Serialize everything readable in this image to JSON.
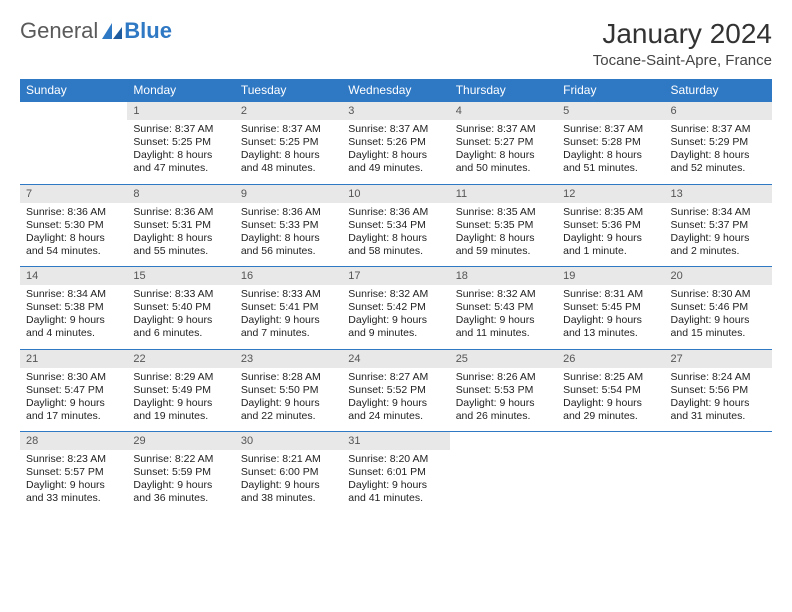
{
  "logo": {
    "word1": "General",
    "word2": "Blue"
  },
  "title": "January 2024",
  "location": "Tocane-Saint-Apre, France",
  "colors": {
    "header_bg": "#2f78c4",
    "header_text": "#ffffff",
    "daynum_bg": "#e8e8e8",
    "rule": "#2f78c4",
    "body_text": "#222222"
  },
  "day_names": [
    "Sunday",
    "Monday",
    "Tuesday",
    "Wednesday",
    "Thursday",
    "Friday",
    "Saturday"
  ],
  "weeks": [
    {
      "nums": [
        "",
        "1",
        "2",
        "3",
        "4",
        "5",
        "6"
      ],
      "cells": [
        null,
        {
          "sunrise": "Sunrise: 8:37 AM",
          "sunset": "Sunset: 5:25 PM",
          "daylight": "Daylight: 8 hours and 47 minutes."
        },
        {
          "sunrise": "Sunrise: 8:37 AM",
          "sunset": "Sunset: 5:25 PM",
          "daylight": "Daylight: 8 hours and 48 minutes."
        },
        {
          "sunrise": "Sunrise: 8:37 AM",
          "sunset": "Sunset: 5:26 PM",
          "daylight": "Daylight: 8 hours and 49 minutes."
        },
        {
          "sunrise": "Sunrise: 8:37 AM",
          "sunset": "Sunset: 5:27 PM",
          "daylight": "Daylight: 8 hours and 50 minutes."
        },
        {
          "sunrise": "Sunrise: 8:37 AM",
          "sunset": "Sunset: 5:28 PM",
          "daylight": "Daylight: 8 hours and 51 minutes."
        },
        {
          "sunrise": "Sunrise: 8:37 AM",
          "sunset": "Sunset: 5:29 PM",
          "daylight": "Daylight: 8 hours and 52 minutes."
        }
      ]
    },
    {
      "nums": [
        "7",
        "8",
        "9",
        "10",
        "11",
        "12",
        "13"
      ],
      "cells": [
        {
          "sunrise": "Sunrise: 8:36 AM",
          "sunset": "Sunset: 5:30 PM",
          "daylight": "Daylight: 8 hours and 54 minutes."
        },
        {
          "sunrise": "Sunrise: 8:36 AM",
          "sunset": "Sunset: 5:31 PM",
          "daylight": "Daylight: 8 hours and 55 minutes."
        },
        {
          "sunrise": "Sunrise: 8:36 AM",
          "sunset": "Sunset: 5:33 PM",
          "daylight": "Daylight: 8 hours and 56 minutes."
        },
        {
          "sunrise": "Sunrise: 8:36 AM",
          "sunset": "Sunset: 5:34 PM",
          "daylight": "Daylight: 8 hours and 58 minutes."
        },
        {
          "sunrise": "Sunrise: 8:35 AM",
          "sunset": "Sunset: 5:35 PM",
          "daylight": "Daylight: 8 hours and 59 minutes."
        },
        {
          "sunrise": "Sunrise: 8:35 AM",
          "sunset": "Sunset: 5:36 PM",
          "daylight": "Daylight: 9 hours and 1 minute."
        },
        {
          "sunrise": "Sunrise: 8:34 AM",
          "sunset": "Sunset: 5:37 PM",
          "daylight": "Daylight: 9 hours and 2 minutes."
        }
      ]
    },
    {
      "nums": [
        "14",
        "15",
        "16",
        "17",
        "18",
        "19",
        "20"
      ],
      "cells": [
        {
          "sunrise": "Sunrise: 8:34 AM",
          "sunset": "Sunset: 5:38 PM",
          "daylight": "Daylight: 9 hours and 4 minutes."
        },
        {
          "sunrise": "Sunrise: 8:33 AM",
          "sunset": "Sunset: 5:40 PM",
          "daylight": "Daylight: 9 hours and 6 minutes."
        },
        {
          "sunrise": "Sunrise: 8:33 AM",
          "sunset": "Sunset: 5:41 PM",
          "daylight": "Daylight: 9 hours and 7 minutes."
        },
        {
          "sunrise": "Sunrise: 8:32 AM",
          "sunset": "Sunset: 5:42 PM",
          "daylight": "Daylight: 9 hours and 9 minutes."
        },
        {
          "sunrise": "Sunrise: 8:32 AM",
          "sunset": "Sunset: 5:43 PM",
          "daylight": "Daylight: 9 hours and 11 minutes."
        },
        {
          "sunrise": "Sunrise: 8:31 AM",
          "sunset": "Sunset: 5:45 PM",
          "daylight": "Daylight: 9 hours and 13 minutes."
        },
        {
          "sunrise": "Sunrise: 8:30 AM",
          "sunset": "Sunset: 5:46 PM",
          "daylight": "Daylight: 9 hours and 15 minutes."
        }
      ]
    },
    {
      "nums": [
        "21",
        "22",
        "23",
        "24",
        "25",
        "26",
        "27"
      ],
      "cells": [
        {
          "sunrise": "Sunrise: 8:30 AM",
          "sunset": "Sunset: 5:47 PM",
          "daylight": "Daylight: 9 hours and 17 minutes."
        },
        {
          "sunrise": "Sunrise: 8:29 AM",
          "sunset": "Sunset: 5:49 PM",
          "daylight": "Daylight: 9 hours and 19 minutes."
        },
        {
          "sunrise": "Sunrise: 8:28 AM",
          "sunset": "Sunset: 5:50 PM",
          "daylight": "Daylight: 9 hours and 22 minutes."
        },
        {
          "sunrise": "Sunrise: 8:27 AM",
          "sunset": "Sunset: 5:52 PM",
          "daylight": "Daylight: 9 hours and 24 minutes."
        },
        {
          "sunrise": "Sunrise: 8:26 AM",
          "sunset": "Sunset: 5:53 PM",
          "daylight": "Daylight: 9 hours and 26 minutes."
        },
        {
          "sunrise": "Sunrise: 8:25 AM",
          "sunset": "Sunset: 5:54 PM",
          "daylight": "Daylight: 9 hours and 29 minutes."
        },
        {
          "sunrise": "Sunrise: 8:24 AM",
          "sunset": "Sunset: 5:56 PM",
          "daylight": "Daylight: 9 hours and 31 minutes."
        }
      ]
    },
    {
      "nums": [
        "28",
        "29",
        "30",
        "31",
        "",
        "",
        ""
      ],
      "cells": [
        {
          "sunrise": "Sunrise: 8:23 AM",
          "sunset": "Sunset: 5:57 PM",
          "daylight": "Daylight: 9 hours and 33 minutes."
        },
        {
          "sunrise": "Sunrise: 8:22 AM",
          "sunset": "Sunset: 5:59 PM",
          "daylight": "Daylight: 9 hours and 36 minutes."
        },
        {
          "sunrise": "Sunrise: 8:21 AM",
          "sunset": "Sunset: 6:00 PM",
          "daylight": "Daylight: 9 hours and 38 minutes."
        },
        {
          "sunrise": "Sunrise: 8:20 AM",
          "sunset": "Sunset: 6:01 PM",
          "daylight": "Daylight: 9 hours and 41 minutes."
        },
        null,
        null,
        null
      ]
    }
  ]
}
